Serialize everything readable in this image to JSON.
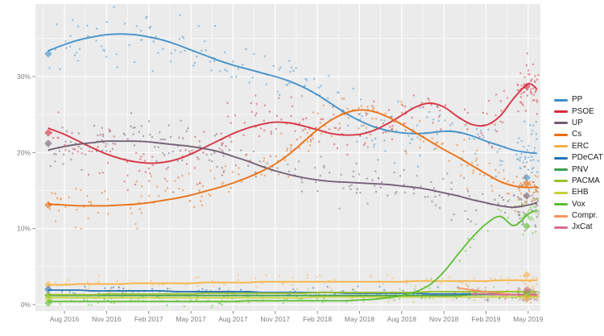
{
  "chart_data": {
    "type": "scatter",
    "description": "Opinion polling trend for Spanish general election, poll scatter with local-regression trend lines, Jun 2016 - May 2019",
    "title": "",
    "x_axis": {
      "unit": "months_since_jun_2016",
      "ticks": [
        {
          "t": 2,
          "label": "Aug 2016"
        },
        {
          "t": 5,
          "label": "Nov 2016"
        },
        {
          "t": 8,
          "label": "Feb 2017"
        },
        {
          "t": 11,
          "label": "May 2017"
        },
        {
          "t": 14,
          "label": "Aug 2017"
        },
        {
          "t": 17,
          "label": "Nov 2017"
        },
        {
          "t": 20,
          "label": "Feb 2018"
        },
        {
          "t": 23,
          "label": "May 2018"
        },
        {
          "t": 26,
          "label": "Aug 2018"
        },
        {
          "t": 29,
          "label": "Nov 2018"
        },
        {
          "t": 32,
          "label": "Feb 2019"
        },
        {
          "t": 35,
          "label": "May 2019"
        }
      ],
      "minor_ticks": [
        0.5,
        3.5,
        6.5,
        9.5,
        12.5,
        15.5,
        18.5,
        21.5,
        24.5,
        27.5,
        30.5,
        33.5
      ]
    },
    "y_axis": {
      "ticks": [
        {
          "v": 0,
          "label": "0%"
        },
        {
          "v": 10,
          "label": "10%"
        },
        {
          "v": 20,
          "label": "20%"
        },
        {
          "v": 30,
          "label": "30%"
        }
      ],
      "minor_ticks": [
        5,
        15,
        25,
        35
      ],
      "range": [
        -0.9,
        39.5
      ]
    },
    "x_months": [
      0.9,
      1,
      2,
      3,
      4,
      5,
      6,
      7,
      8,
      9,
      10,
      11,
      12,
      13,
      14,
      15,
      16,
      17,
      18,
      19,
      20,
      21,
      22,
      23,
      24,
      25,
      26,
      27,
      28,
      29,
      30,
      31,
      32,
      33,
      34,
      35,
      35.6
    ],
    "series": [
      {
        "name": "PP",
        "color": "#3E8EC9",
        "values": [
          33.4,
          33.5,
          34.2,
          34.8,
          35.2,
          35.5,
          35.6,
          35.5,
          35.2,
          34.8,
          34.2,
          33.5,
          32.8,
          32.1,
          31.5,
          31.0,
          30.5,
          30.0,
          29.4,
          28.6,
          27.6,
          26.4,
          25.2,
          24.2,
          23.4,
          22.9,
          22.6,
          22.5,
          22.6,
          22.8,
          22.7,
          22.2,
          21.5,
          20.9,
          20.3,
          20.0,
          19.9
        ],
        "scatter": {
          "per_month": 6,
          "sd": 1.9,
          "burst": 32
        },
        "election_results": [
          {
            "t": 0.85,
            "v": 33.0
          },
          {
            "t": 34.9,
            "v": 16.7
          }
        ]
      },
      {
        "name": "PSOE",
        "color": "#D62C3C",
        "values": [
          23.2,
          23.1,
          22.4,
          21.5,
          20.6,
          19.8,
          19.2,
          18.8,
          18.6,
          18.7,
          19.1,
          19.8,
          20.7,
          21.6,
          22.5,
          23.2,
          23.7,
          24.0,
          23.9,
          23.5,
          23.0,
          22.5,
          22.3,
          22.4,
          22.9,
          23.8,
          24.9,
          26.0,
          26.5,
          26.0,
          24.7,
          23.7,
          23.6,
          24.8,
          27.2,
          29.0,
          28.4
        ],
        "scatter": {
          "per_month": 6,
          "sd": 1.9,
          "burst": 42
        },
        "election_results": [
          {
            "t": 0.85,
            "v": 22.6
          },
          {
            "t": 34.9,
            "v": 28.7
          }
        ]
      },
      {
        "name": "UP",
        "color": "#6E5C70",
        "values": [
          20.3,
          20.4,
          20.8,
          21.1,
          21.3,
          21.5,
          21.5,
          21.5,
          21.4,
          21.2,
          21.0,
          20.8,
          20.5,
          20.1,
          19.5,
          18.9,
          18.2,
          17.6,
          17.1,
          16.7,
          16.4,
          16.2,
          16.1,
          16.0,
          15.9,
          15.8,
          15.6,
          15.4,
          15.1,
          14.7,
          14.3,
          13.8,
          13.4,
          13.0,
          12.8,
          13.1,
          13.4
        ],
        "scatter": {
          "per_month": 6,
          "sd": 1.6,
          "burst": 30
        },
        "election_results": [
          {
            "t": 0.85,
            "v": 21.2
          },
          {
            "t": 34.9,
            "v": 14.3
          }
        ]
      },
      {
        "name": "Cs",
        "color": "#E96B0C",
        "values": [
          13.3,
          13.2,
          13.1,
          13.0,
          13.0,
          13.0,
          13.1,
          13.2,
          13.4,
          13.7,
          14.0,
          14.4,
          14.9,
          15.4,
          16.0,
          16.7,
          17.5,
          18.5,
          19.8,
          21.4,
          23.0,
          24.3,
          25.2,
          25.6,
          25.4,
          24.7,
          23.7,
          22.6,
          21.5,
          20.4,
          19.4,
          18.3,
          17.2,
          16.2,
          15.6,
          15.4,
          15.5
        ],
        "scatter": {
          "per_month": 6,
          "sd": 1.5,
          "burst": 30
        },
        "election_results": [
          {
            "t": 0.85,
            "v": 13.1
          },
          {
            "t": 34.9,
            "v": 15.9
          }
        ]
      },
      {
        "name": "ERC",
        "color": "#F6B13F",
        "values": [
          2.6,
          2.6,
          2.6,
          2.7,
          2.7,
          2.7,
          2.7,
          2.8,
          2.8,
          2.8,
          2.8,
          2.8,
          2.9,
          2.9,
          2.9,
          2.9,
          3.0,
          3.0,
          3.0,
          3.0,
          3.0,
          3.0,
          3.0,
          3.0,
          3.0,
          3.0,
          3.0,
          3.1,
          3.1,
          3.1,
          3.1,
          3.1,
          3.1,
          3.2,
          3.2,
          3.2,
          3.2
        ],
        "scatter": {
          "per_month": 2.2,
          "sd": 0.5,
          "burst": 16
        },
        "election_results": [
          {
            "t": 0.85,
            "v": 2.6
          },
          {
            "t": 34.9,
            "v": 3.9
          }
        ]
      },
      {
        "name": "PDeCAT",
        "color": "#2572B5",
        "values": [
          1.9,
          1.9,
          1.9,
          1.9,
          1.8,
          1.8,
          1.8,
          1.8,
          1.8,
          1.8,
          1.7,
          1.7,
          1.7,
          1.7,
          1.7,
          1.7,
          1.6,
          1.6,
          1.6,
          1.6,
          1.6,
          1.6,
          1.5,
          1.5,
          1.5,
          1.5,
          1.5,
          1.5,
          1.4,
          1.4,
          1.4,
          1.4,
          1.4,
          1.4,
          1.3,
          1.3,
          1.3
        ],
        "scatter": {
          "per_month": 2.2,
          "sd": 0.4,
          "burst": 8
        },
        "election_results": [
          {
            "t": 0.85,
            "v": 2.0
          }
        ]
      },
      {
        "name": "PNV",
        "color": "#3D9E4D",
        "values": [
          1.2,
          1.2,
          1.2,
          1.2,
          1.2,
          1.2,
          1.2,
          1.2,
          1.2,
          1.2,
          1.2,
          1.2,
          1.2,
          1.2,
          1.2,
          1.2,
          1.2,
          1.2,
          1.2,
          1.2,
          1.2,
          1.2,
          1.2,
          1.2,
          1.2,
          1.2,
          1.2,
          1.2,
          1.2,
          1.2,
          1.2,
          1.3,
          1.3,
          1.3,
          1.3,
          1.3,
          1.3
        ],
        "scatter": {
          "per_month": 1.6,
          "sd": 0.3,
          "burst": 8
        },
        "election_results": [
          {
            "t": 0.85,
            "v": 1.2
          },
          {
            "t": 34.9,
            "v": 1.5
          }
        ]
      },
      {
        "name": "PACMA",
        "color": "#9CC12B",
        "values": [
          1.3,
          1.3,
          1.3,
          1.3,
          1.3,
          1.4,
          1.4,
          1.4,
          1.4,
          1.4,
          1.4,
          1.4,
          1.5,
          1.5,
          1.5,
          1.5,
          1.5,
          1.5,
          1.5,
          1.5,
          1.6,
          1.6,
          1.6,
          1.6,
          1.6,
          1.6,
          1.6,
          1.6,
          1.7,
          1.7,
          1.7,
          1.7,
          1.7,
          1.7,
          1.7,
          1.7,
          1.7
        ],
        "scatter": {
          "per_month": 1.6,
          "sd": 0.35,
          "burst": 8
        },
        "election_results": [
          {
            "t": 0.85,
            "v": 1.2
          },
          {
            "t": 34.9,
            "v": 1.3
          }
        ]
      },
      {
        "name": "EHB",
        "color": "#C2D335",
        "values": [
          0.9,
          0.9,
          0.9,
          0.9,
          0.9,
          0.9,
          0.9,
          0.9,
          0.9,
          0.9,
          0.9,
          0.9,
          0.9,
          0.9,
          0.9,
          0.9,
          0.9,
          0.9,
          0.9,
          0.9,
          1.0,
          1.0,
          1.0,
          1.0,
          1.0,
          1.0,
          1.0,
          1.0,
          1.0,
          1.0,
          1.0,
          1.0,
          1.0,
          1.0,
          1.0,
          1.0,
          1.0
        ],
        "scatter": {
          "per_month": 1.6,
          "sd": 0.3,
          "burst": 8
        },
        "election_results": [
          {
            "t": 0.85,
            "v": 0.8
          },
          {
            "t": 34.9,
            "v": 1.0
          }
        ]
      },
      {
        "name": "Vox",
        "color": "#59BE2E",
        "values": [
          0.4,
          0.4,
          0.4,
          0.4,
          0.4,
          0.4,
          0.4,
          0.4,
          0.4,
          0.4,
          0.4,
          0.4,
          0.4,
          0.4,
          0.4,
          0.5,
          0.5,
          0.5,
          0.5,
          0.5,
          0.5,
          0.5,
          0.5,
          0.6,
          0.7,
          0.9,
          1.2,
          1.7,
          2.6,
          4.3,
          6.6,
          8.8,
          10.6,
          11.6,
          10.4,
          11.9,
          12.4
        ],
        "scatter": {
          "per_month": 2.2,
          "sd": 0.35,
          "sd_scale": true,
          "burst": 32
        },
        "election_results": [
          {
            "t": 0.85,
            "v": 0.2
          },
          {
            "t": 34.9,
            "v": 10.3
          }
        ]
      },
      {
        "name": "Compr.",
        "color": "#F79257",
        "values": [
          null,
          null,
          null,
          null,
          null,
          null,
          null,
          null,
          null,
          null,
          null,
          null,
          null,
          null,
          null,
          null,
          null,
          null,
          null,
          null,
          null,
          null,
          null,
          null,
          null,
          null,
          null,
          null,
          null,
          null,
          2.2,
          1.9,
          1.7,
          1.5,
          1.3,
          1.2,
          1.2
        ],
        "scatter": {
          "per_month": 4,
          "sd": 0.5,
          "burst": 18
        },
        "election_results": [
          {
            "t": 34.9,
            "v": 0.7
          }
        ]
      },
      {
        "name": "JxCat",
        "color": "#D96C8C",
        "values": [
          null,
          null,
          null,
          null,
          null,
          null,
          null,
          null,
          null,
          null,
          null,
          null,
          null,
          null,
          null,
          null,
          null,
          null,
          null,
          null,
          null,
          null,
          null,
          null,
          null,
          null,
          null,
          null,
          null,
          null,
          null,
          1.4,
          1.4,
          1.3,
          1.3,
          1.3,
          1.3
        ],
        "scatter": {
          "per_month": 5,
          "sd": 0.45,
          "burst": 26
        },
        "election_results": [
          {
            "t": 34.9,
            "v": 1.9
          }
        ]
      }
    ],
    "legend_position": "right",
    "grid": true,
    "panel_color": "#ebebeb",
    "gridline_color": "#ffffff",
    "tick_label_color": "#7e7e7e"
  }
}
